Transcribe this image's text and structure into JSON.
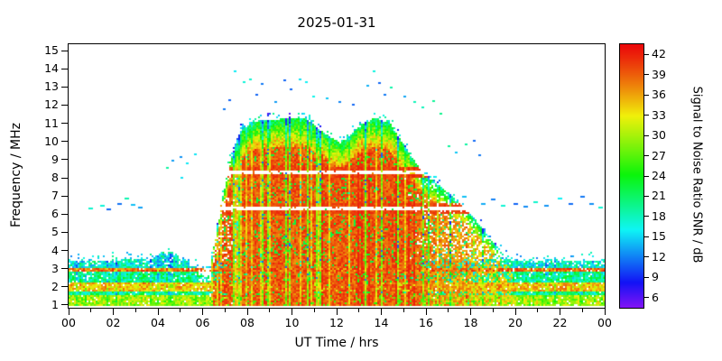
{
  "title": "2025-01-31",
  "axes": {
    "xlabel": "UT Time / hrs",
    "ylabel": "Frequency / MHz",
    "x_tick_hours": [
      0,
      2,
      4,
      6,
      8,
      10,
      12,
      14,
      16,
      18,
      20,
      22,
      24
    ],
    "x_tick_labels": [
      "00",
      "02",
      "04",
      "06",
      "08",
      "10",
      "12",
      "14",
      "16",
      "18",
      "20",
      "22",
      "00"
    ],
    "x_minor_hours": [
      1,
      3,
      5,
      7,
      9,
      11,
      13,
      15,
      17,
      19,
      21,
      23
    ],
    "y_tick_values": [
      1,
      2,
      3,
      4,
      5,
      6,
      7,
      8,
      9,
      10,
      11,
      12,
      13,
      14,
      15
    ],
    "x_range_hours": [
      0,
      24
    ],
    "y_range_mhz": [
      0.85,
      15.35
    ]
  },
  "colorbar": {
    "label": "Signal to Noise Ratio SNR / dB",
    "tick_values": [
      6,
      9,
      12,
      15,
      18,
      21,
      24,
      27,
      30,
      33,
      36,
      39,
      42
    ],
    "value_range": [
      4.5,
      43.5
    ],
    "low_color": "#7a00e6",
    "high_color": "#e60000"
  },
  "chart_data": {
    "type": "heatmap",
    "title": "2025-01-31",
    "xlabel": "UT Time / hrs",
    "ylabel": "Frequency / MHz",
    "zlabel": "Signal to Noise Ratio SNR / dB",
    "x_range_hours": [
      0,
      24
    ],
    "freq_range_mhz": [
      1,
      15
    ],
    "snr_range_db": [
      6,
      42
    ],
    "night_band": {
      "freq_min_mhz": 1.0,
      "top_points": [
        [
          0,
          3.45
        ],
        [
          3.7,
          3.5
        ],
        [
          4.2,
          3.95
        ],
        [
          4.9,
          3.7
        ],
        [
          5.6,
          3.1
        ],
        [
          6.1,
          3.0
        ],
        [
          6.6,
          3.4
        ],
        [
          19.0,
          3.5
        ],
        [
          20.0,
          3.4
        ],
        [
          24,
          3.45
        ]
      ],
      "strong_lines": [
        {
          "freq_mhz": 2.95,
          "width_mhz": 0.24,
          "snr": 39
        },
        {
          "freq_mhz": 2.0,
          "width_mhz": 0.5,
          "snr": 35
        },
        {
          "freq_mhz": 1.25,
          "width_mhz": 0.55,
          "snr": 30
        }
      ]
    },
    "dome_envelope_points": [
      [
        6.35,
        3.2
      ],
      [
        6.8,
        6.3
      ],
      [
        7.2,
        8.8
      ],
      [
        7.7,
        10.6
      ],
      [
        8.3,
        11.1
      ],
      [
        9.0,
        11.2
      ],
      [
        10.6,
        11.3
      ],
      [
        11.4,
        10.5
      ],
      [
        12.2,
        9.9
      ],
      [
        12.9,
        10.7
      ],
      [
        13.7,
        11.3
      ],
      [
        14.4,
        11.0
      ],
      [
        15.1,
        9.6
      ],
      [
        15.9,
        8.2
      ],
      [
        16.8,
        7.4
      ],
      [
        17.8,
        6.3
      ],
      [
        18.7,
        5.0
      ],
      [
        19.4,
        3.9
      ],
      [
        19.9,
        3.3
      ]
    ],
    "notch_frequencies_mhz": [
      6.33,
      8.33
    ],
    "sporadic_points": [
      [
        0.9,
        6.35
      ],
      [
        1.4,
        6.5
      ],
      [
        1.7,
        6.3
      ],
      [
        2.2,
        6.6
      ],
      [
        2.5,
        6.9
      ],
      [
        2.8,
        6.55
      ],
      [
        3.1,
        6.4
      ],
      [
        4.35,
        8.6
      ],
      [
        4.6,
        9.0
      ],
      [
        4.95,
        9.2
      ],
      [
        5.25,
        8.85
      ],
      [
        5.6,
        9.35
      ],
      [
        5.0,
        8.05
      ],
      [
        6.9,
        11.8
      ],
      [
        7.15,
        12.3
      ],
      [
        7.4,
        13.9
      ],
      [
        7.8,
        13.3
      ],
      [
        8.1,
        13.45
      ],
      [
        8.35,
        12.6
      ],
      [
        8.6,
        13.2
      ],
      [
        9.2,
        12.2
      ],
      [
        9.6,
        13.4
      ],
      [
        9.9,
        12.9
      ],
      [
        10.3,
        13.45
      ],
      [
        10.6,
        13.3
      ],
      [
        10.9,
        12.5
      ],
      [
        11.5,
        12.4
      ],
      [
        12.1,
        12.2
      ],
      [
        12.7,
        12.05
      ],
      [
        13.35,
        13.1
      ],
      [
        13.6,
        13.9
      ],
      [
        13.85,
        13.25
      ],
      [
        14.1,
        12.6
      ],
      [
        14.4,
        13.0
      ],
      [
        15.0,
        12.5
      ],
      [
        15.45,
        12.2
      ],
      [
        15.8,
        11.9
      ],
      [
        16.3,
        12.25
      ],
      [
        16.6,
        11.6
      ],
      [
        16.95,
        9.8
      ],
      [
        17.3,
        9.45
      ],
      [
        17.75,
        9.9
      ],
      [
        18.1,
        10.1
      ],
      [
        18.35,
        9.3
      ],
      [
        17.6,
        7.0
      ],
      [
        18.45,
        6.6
      ],
      [
        18.9,
        6.85
      ],
      [
        19.35,
        6.5
      ],
      [
        19.9,
        6.6
      ],
      [
        20.35,
        6.45
      ],
      [
        20.8,
        6.7
      ],
      [
        21.3,
        6.5
      ],
      [
        21.9,
        6.9
      ],
      [
        22.4,
        6.6
      ],
      [
        22.9,
        7.0
      ],
      [
        23.3,
        6.6
      ],
      [
        23.7,
        6.4
      ]
    ]
  }
}
